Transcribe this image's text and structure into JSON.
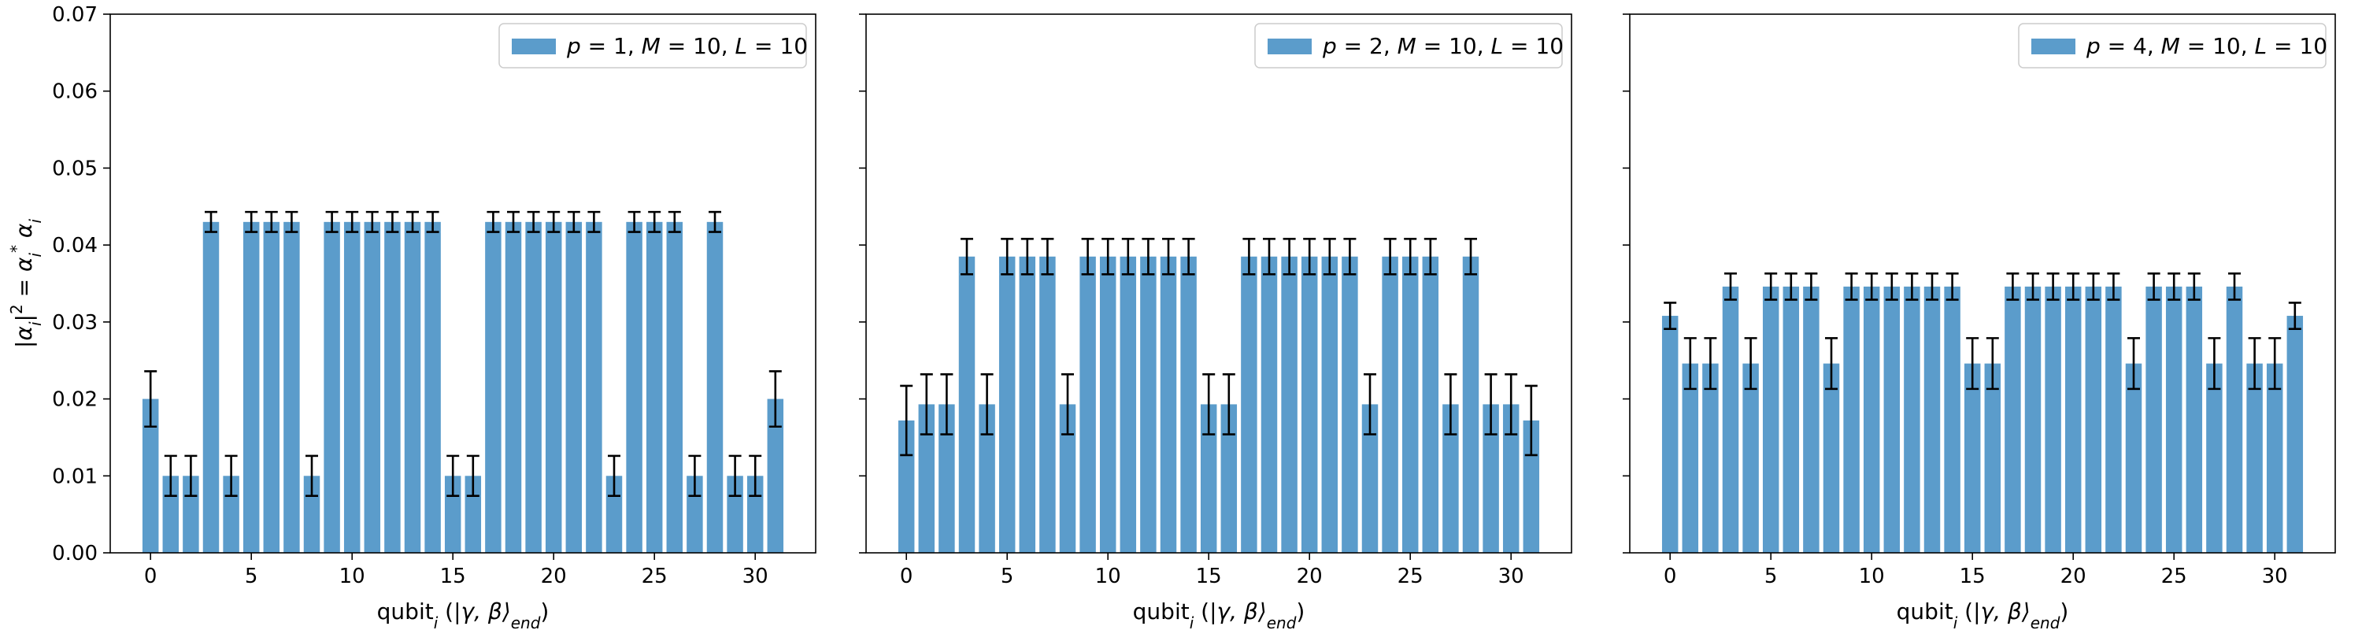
{
  "chart_data": [
    {
      "type": "bar",
      "ylabel": "|α_i|² = α_i* α_i",
      "xlabel": "qubit_i (|γ, β⟩_end)",
      "ylim": [
        0,
        0.07
      ],
      "xlim": [
        -2,
        33
      ],
      "yticks": [
        "0.00",
        "0.01",
        "0.02",
        "0.03",
        "0.04",
        "0.05",
        "0.06",
        "0.07"
      ],
      "xticks": [
        "0",
        "5",
        "10",
        "15",
        "20",
        "25",
        "30"
      ],
      "legend_position": "top-right",
      "color": "#5b9ccb",
      "series": [
        {
          "name": "p = 1, M = 10, L = 10",
          "values": [
            0.02,
            0.01,
            0.01,
            0.043,
            0.01,
            0.043,
            0.043,
            0.043,
            0.01,
            0.043,
            0.043,
            0.043,
            0.043,
            0.043,
            0.043,
            0.01,
            0.01,
            0.043,
            0.043,
            0.043,
            0.043,
            0.043,
            0.043,
            0.01,
            0.043,
            0.043,
            0.043,
            0.01,
            0.043,
            0.01,
            0.01,
            0.02
          ],
          "errors": [
            0.0036,
            0.0026,
            0.0026,
            0.0013,
            0.0026,
            0.0013,
            0.0013,
            0.0013,
            0.0026,
            0.0013,
            0.0013,
            0.0013,
            0.0013,
            0.0013,
            0.0013,
            0.0026,
            0.0026,
            0.0013,
            0.0013,
            0.0013,
            0.0013,
            0.0013,
            0.0013,
            0.0026,
            0.0013,
            0.0013,
            0.0013,
            0.0026,
            0.0013,
            0.0026,
            0.0026,
            0.0036
          ]
        }
      ]
    },
    {
      "type": "bar",
      "ylabel": "",
      "xlabel": "qubit_i (|γ, β⟩_end)",
      "ylim": [
        0,
        0.07
      ],
      "xlim": [
        -2,
        33
      ],
      "yticks": [],
      "xticks": [
        "0",
        "5",
        "10",
        "15",
        "20",
        "25",
        "30"
      ],
      "legend_position": "top-right",
      "color": "#5b9ccb",
      "series": [
        {
          "name": "p = 2, M = 10, L = 10",
          "values": [
            0.0172,
            0.0193,
            0.0193,
            0.0385,
            0.0193,
            0.0385,
            0.0385,
            0.0385,
            0.0193,
            0.0385,
            0.0385,
            0.0385,
            0.0385,
            0.0385,
            0.0385,
            0.0193,
            0.0193,
            0.0385,
            0.0385,
            0.0385,
            0.0385,
            0.0385,
            0.0385,
            0.0193,
            0.0385,
            0.0385,
            0.0385,
            0.0193,
            0.0385,
            0.0193,
            0.0193,
            0.0172
          ],
          "errors": [
            0.0045,
            0.0039,
            0.0039,
            0.0023,
            0.0039,
            0.0023,
            0.0023,
            0.0023,
            0.0039,
            0.0023,
            0.0023,
            0.0023,
            0.0023,
            0.0023,
            0.0023,
            0.0039,
            0.0039,
            0.0023,
            0.0023,
            0.0023,
            0.0023,
            0.0023,
            0.0023,
            0.0039,
            0.0023,
            0.0023,
            0.0023,
            0.0039,
            0.0023,
            0.0039,
            0.0039,
            0.0045
          ]
        }
      ]
    },
    {
      "type": "bar",
      "ylabel": "",
      "xlabel": "qubit_i (|γ, β⟩_end)",
      "ylim": [
        0,
        0.07
      ],
      "xlim": [
        -2,
        33
      ],
      "yticks": [],
      "xticks": [
        "0",
        "5",
        "10",
        "15",
        "20",
        "25",
        "30"
      ],
      "legend_position": "top-right",
      "color": "#5b9ccb",
      "series": [
        {
          "name": "p = 4, M = 10, L = 10",
          "values": [
            0.0308,
            0.0246,
            0.0246,
            0.0346,
            0.0246,
            0.0346,
            0.0346,
            0.0346,
            0.0246,
            0.0346,
            0.0346,
            0.0346,
            0.0346,
            0.0346,
            0.0346,
            0.0246,
            0.0246,
            0.0346,
            0.0346,
            0.0346,
            0.0346,
            0.0346,
            0.0346,
            0.0246,
            0.0346,
            0.0346,
            0.0346,
            0.0246,
            0.0346,
            0.0246,
            0.0246,
            0.0308
          ],
          "errors": [
            0.0017,
            0.0033,
            0.0033,
            0.0017,
            0.0033,
            0.0017,
            0.0017,
            0.0017,
            0.0033,
            0.0017,
            0.0017,
            0.0017,
            0.0017,
            0.0017,
            0.0017,
            0.0033,
            0.0033,
            0.0017,
            0.0017,
            0.0017,
            0.0017,
            0.0017,
            0.0017,
            0.0033,
            0.0017,
            0.0017,
            0.0017,
            0.0033,
            0.0017,
            0.0033,
            0.0033,
            0.0017
          ]
        }
      ]
    }
  ]
}
